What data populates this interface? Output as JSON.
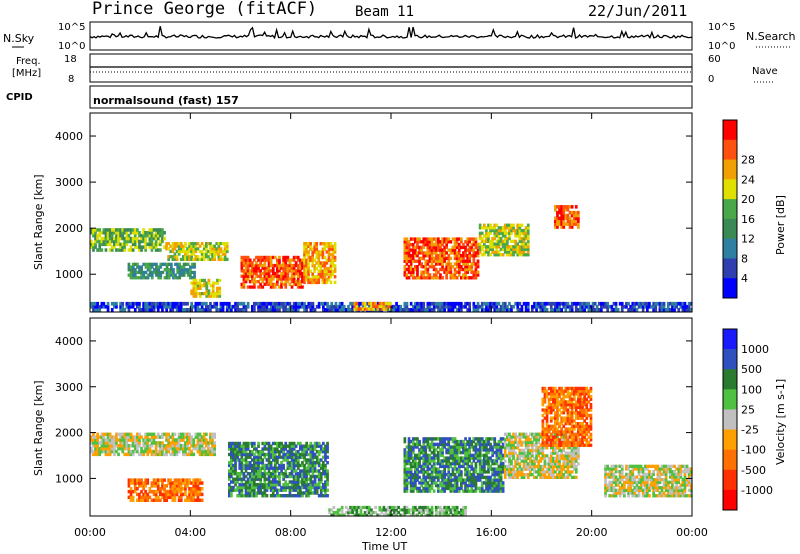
{
  "header": {
    "title": "Prince George (fitACF)",
    "beam": "Beam 11",
    "date": "22/Jun/2011"
  },
  "strip": {
    "nsky_label": "N.Sky",
    "nsky_ticks": [
      "10^5",
      "10^0"
    ],
    "nsearch_label": "N.Search",
    "nsearch_ticks": [
      "10^5",
      "10^0"
    ],
    "freq_label_1": "Freq.",
    "freq_label_2": "[MHz]",
    "freq_ticks": [
      "18",
      "8"
    ],
    "nave_label": "Nave",
    "nave_ticks": [
      "60",
      "0"
    ],
    "cpid_label": "CPID",
    "cpid_value": "normalsound (fast) 157"
  },
  "colors": {
    "power": [
      "#0000ff",
      "#2f3fb0",
      "#2e7fa0",
      "#3a8a55",
      "#4aa84a",
      "#e0e000",
      "#f0a000",
      "#ff5010",
      "#ff0000"
    ],
    "velocity": [
      "#1a1aff",
      "#3050c0",
      "#2a7a30",
      "#50c040",
      "#c0c0c0",
      "#ffa000",
      "#ff7000",
      "#ff3000",
      "#ff0000"
    ]
  },
  "chart_data": [
    {
      "type": "heatmap",
      "panel": "power",
      "ylabel": "Slant Range [km]",
      "yticks": [
        "1000",
        "2000",
        "3000",
        "4000"
      ],
      "ylim": [
        180,
        4500
      ],
      "colorbar_label": "Power [dB]",
      "colorbar_ticks": [
        "4",
        "8",
        "12",
        "16",
        "20",
        "24",
        "28"
      ],
      "regions": [
        {
          "x0": 0.0,
          "x1": 3.0,
          "y0": 1500,
          "y1": 2000,
          "level": 4
        },
        {
          "x0": 3.0,
          "x1": 5.5,
          "y0": 1300,
          "y1": 1700,
          "level": 5
        },
        {
          "x0": 1.5,
          "x1": 4.2,
          "y0": 900,
          "y1": 1250,
          "level": 3
        },
        {
          "x0": 4.0,
          "x1": 5.2,
          "y0": 500,
          "y1": 900,
          "level": 5
        },
        {
          "x0": 6.0,
          "x1": 8.5,
          "y0": 700,
          "y1": 1400,
          "level": 7
        },
        {
          "x0": 8.5,
          "x1": 9.8,
          "y0": 800,
          "y1": 1700,
          "level": 6
        },
        {
          "x0": 12.5,
          "x1": 15.5,
          "y0": 900,
          "y1": 1800,
          "level": 7
        },
        {
          "x0": 15.5,
          "x1": 17.5,
          "y0": 1400,
          "y1": 2100,
          "level": 5
        },
        {
          "x0": 18.5,
          "x1": 19.5,
          "y0": 2000,
          "y1": 2500,
          "level": 7
        },
        {
          "x0": 0.0,
          "x1": 24.0,
          "y0": 200,
          "y1": 400,
          "level": 1
        },
        {
          "x0": 10.5,
          "x1": 12.0,
          "y0": 220,
          "y1": 400,
          "level": 6
        }
      ]
    },
    {
      "type": "heatmap",
      "panel": "velocity",
      "ylabel": "Slant Range [km]",
      "yticks": [
        "1000",
        "2000",
        "3000",
        "4000"
      ],
      "ylim": [
        180,
        4500
      ],
      "xlabel": "Time UT",
      "xticks": [
        "00:00",
        "04:00",
        "08:00",
        "12:00",
        "16:00",
        "20:00",
        "00:00"
      ],
      "colorbar_label": "Velocity [m s-1]",
      "colorbar_ticks": [
        "1000",
        "500",
        "100",
        "25",
        "-25",
        "-100",
        "-500",
        "-1000"
      ],
      "regions": [
        {
          "x0": 0.0,
          "x1": 5.0,
          "y0": 1500,
          "y1": 2000,
          "level": 4
        },
        {
          "x0": 1.5,
          "x1": 4.5,
          "y0": 500,
          "y1": 1000,
          "level": 6
        },
        {
          "x0": 5.5,
          "x1": 9.5,
          "y0": 600,
          "y1": 1800,
          "level": 2
        },
        {
          "x0": 12.5,
          "x1": 16.5,
          "y0": 700,
          "y1": 1900,
          "level": 2
        },
        {
          "x0": 16.5,
          "x1": 19.5,
          "y0": 1000,
          "y1": 2000,
          "level": 4
        },
        {
          "x0": 18.0,
          "x1": 20.0,
          "y0": 1700,
          "y1": 3000,
          "level": 6
        },
        {
          "x0": 20.5,
          "x1": 24.0,
          "y0": 600,
          "y1": 1300,
          "level": 4
        },
        {
          "x0": 9.5,
          "x1": 15.0,
          "y0": 180,
          "y1": 400,
          "level": 3
        }
      ]
    }
  ]
}
